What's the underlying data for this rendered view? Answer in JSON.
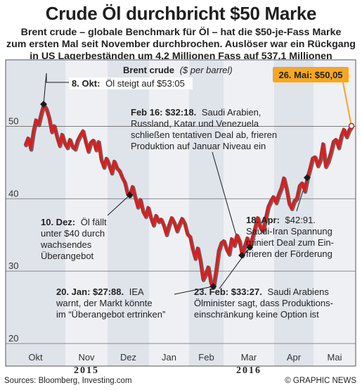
{
  "header": {
    "title": "Crude Öl durchbricht $50 Marke",
    "subtitle_lines": [
      "Brent crude – globale Benchmark für Öl – hat die $50-je-Fass Marke",
      "zum ersten Mal seit November durchbrochen. Auslöser war ein Rückgang",
      "in US Lagerbeständen um 4,2 Millionen Fass auf 537,1 Millionen"
    ]
  },
  "footer": {
    "source": "Sources: Bloomberg, Investing.com",
    "credit": "© GRAPHIC NEWS"
  },
  "colors": {
    "line": "#d62020",
    "line_shadow": "#3a3a3a",
    "panel_shade": "#dfe3ea",
    "panel_light": "#eef0f4",
    "callout_bg": "#f5a623",
    "callout_text": "#7a1a10",
    "marker": "#1a1a1a"
  },
  "chart_data": {
    "type": "line",
    "title": "Brent crude",
    "ylabel": "($ per barrel)",
    "ylim": [
      20,
      55
    ],
    "yticks": [
      20,
      30,
      40,
      50
    ],
    "months": [
      "Okt",
      "Nov",
      "Dez",
      "Jan",
      "Feb",
      "Mar",
      "Apr",
      "Mai"
    ],
    "years": [
      {
        "label": "2015",
        "under": "Nov"
      },
      {
        "label": "2016",
        "under": "Mar"
      }
    ],
    "grid": true,
    "series": [
      {
        "values": [
          47.5,
          48.4,
          46.9,
          49.3,
          50.9,
          50.3,
          51.8,
          53.05,
          52.4,
          51.2,
          49.3,
          50.1,
          48.6,
          47.4,
          48.9,
          47.7,
          47.1,
          48.2,
          47.2,
          46.9,
          48.1,
          48.8,
          49.4,
          47.9,
          46.6,
          47.8,
          48.1,
          46.8,
          47.9,
          45.4,
          44.4,
          45.6,
          44.7,
          43.6,
          45.2,
          44.3,
          43.9,
          43.0,
          42.3,
          40.8,
          40.5,
          41.7,
          40.2,
          38.9,
          39.9,
          38.3,
          37.6,
          38.8,
          37.4,
          36.4,
          37.7,
          36.9,
          37.2,
          36.3,
          35.1,
          36.4,
          37.4,
          36.7,
          35.6,
          36.5,
          37.3,
          36.6,
          35.2,
          34.8,
          33.1,
          31.8,
          33.2,
          31.4,
          28.9,
          29.6,
          30.6,
          28.4,
          27.88,
          30.1,
          32.8,
          33.9,
          34.2,
          33.1,
          32.4,
          34.5,
          33.6,
          35.0,
          34.2,
          32.18,
          33.5,
          34.6,
          33.3,
          34.7,
          36.1,
          37.4,
          36.0,
          35.6,
          37.3,
          38.9,
          39.7,
          40.3,
          39.5,
          40.6,
          41.5,
          42.9,
          41.4,
          39.4,
          38.7,
          39.7,
          40.1,
          41.8,
          42.2,
          41.1,
          42.91,
          44.2,
          45.6,
          45.8,
          44.6,
          45.4,
          47.6,
          44.5,
          45.2,
          46.4,
          47.9,
          48.2,
          47.1,
          48.7,
          49.6,
          48.6,
          49.5,
          50.05
        ]
      }
    ],
    "annotations": [
      {
        "date_label": "8. Okt:",
        "text_lines": [
          "Öl steigt auf $53:05"
        ]
      },
      {
        "date_label": "10. Dez:",
        "text_lines": [
          "Öl fällt",
          "unter $40 durch",
          "wachsendes",
          "Überangebot"
        ]
      },
      {
        "date_label": "20. Jan: $27:88.",
        "text_lines": [
          "IEA",
          "warnt, der Markt könnte",
          "im “Überangebot ertrinken”"
        ]
      },
      {
        "date_label": "Feb 16: $32:18.",
        "text_lines": [
          "Saudi Arabien,",
          "Russland, Katar und Venezuela",
          "schließen tentativen Deal ab, frieren",
          "Produktion auf Januar Niveau ein"
        ]
      },
      {
        "date_label": "23. Feb: $33:27.",
        "text_lines": [
          "Saudi Arabiens",
          "Ölminister sagt, dass Produktions-",
          "einschränkung keine Option ist"
        ]
      },
      {
        "date_label": "18. Apr:",
        "text_lines": [
          "$42:91.",
          "Saudi-Iran Spannung",
          "ruiniert Deal zum Ein-",
          "frieren der Förderung"
        ]
      },
      {
        "date_label": "26. Mai: $50,05",
        "text_lines": []
      }
    ]
  }
}
